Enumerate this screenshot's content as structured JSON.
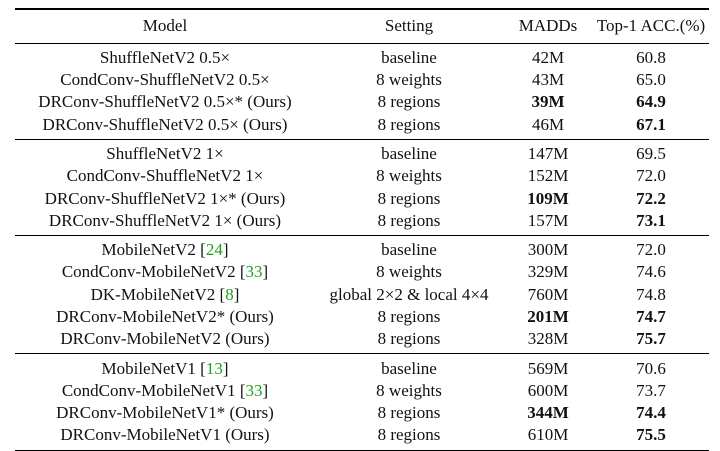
{
  "headers": [
    "Model",
    "Setting",
    "MADDs",
    "Top-1 ACC.(%)"
  ],
  "groups": [
    [
      {
        "model": "ShuffleNetV2 0.5×",
        "ref": "",
        "setting": "baseline",
        "madds": "42M",
        "acc": "60.8",
        "madds_bold": false,
        "acc_bold": false
      },
      {
        "model": "CondConv-ShuffleNetV2 0.5×",
        "ref": "",
        "setting": "8 weights",
        "madds": "43M",
        "acc": "65.0",
        "madds_bold": false,
        "acc_bold": false
      },
      {
        "model": "DRConv-ShuffleNetV2 0.5×* (Ours)",
        "ref": "",
        "setting": "8 regions",
        "madds": "39M",
        "acc": "64.9",
        "madds_bold": true,
        "acc_bold": true
      },
      {
        "model": "DRConv-ShuffleNetV2 0.5× (Ours)",
        "ref": "",
        "setting": "8 regions",
        "madds": "46M",
        "acc": "67.1",
        "madds_bold": false,
        "acc_bold": true
      }
    ],
    [
      {
        "model": "ShuffleNetV2 1×",
        "ref": "",
        "setting": "baseline",
        "madds": "147M",
        "acc": "69.5",
        "madds_bold": false,
        "acc_bold": false
      },
      {
        "model": "CondConv-ShuffleNetV2 1×",
        "ref": "",
        "setting": "8 weights",
        "madds": "152M",
        "acc": "72.0",
        "madds_bold": false,
        "acc_bold": false
      },
      {
        "model": "DRConv-ShuffleNetV2 1×* (Ours)",
        "ref": "",
        "setting": "8 regions",
        "madds": "109M",
        "acc": "72.2",
        "madds_bold": true,
        "acc_bold": true
      },
      {
        "model": "DRConv-ShuffleNetV2 1× (Ours)",
        "ref": "",
        "setting": "8 regions",
        "madds": "157M",
        "acc": "73.1",
        "madds_bold": false,
        "acc_bold": true
      }
    ],
    [
      {
        "model": "MobileNetV2",
        "ref": "24",
        "setting": "baseline",
        "madds": "300M",
        "acc": "72.0",
        "madds_bold": false,
        "acc_bold": false
      },
      {
        "model": "CondConv-MobileNetV2",
        "ref": "33",
        "setting": "8 weights",
        "madds": "329M",
        "acc": "74.6",
        "madds_bold": false,
        "acc_bold": false
      },
      {
        "model": "DK-MobileNetV2",
        "ref": "8",
        "setting": "global 2×2 & local 4×4",
        "madds": "760M",
        "acc": "74.8",
        "madds_bold": false,
        "acc_bold": false
      },
      {
        "model": "DRConv-MobileNetV2* (Ours)",
        "ref": "",
        "setting": "8 regions",
        "madds": "201M",
        "acc": "74.7",
        "madds_bold": true,
        "acc_bold": true
      },
      {
        "model": "DRConv-MobileNetV2 (Ours)",
        "ref": "",
        "setting": "8 regions",
        "madds": "328M",
        "acc": "75.7",
        "madds_bold": false,
        "acc_bold": true
      }
    ],
    [
      {
        "model": "MobileNetV1",
        "ref": "13",
        "setting": "baseline",
        "madds": "569M",
        "acc": "70.6",
        "madds_bold": false,
        "acc_bold": false
      },
      {
        "model": "CondConv-MobileNetV1",
        "ref": "33",
        "setting": "8 weights",
        "madds": "600M",
        "acc": "73.7",
        "madds_bold": false,
        "acc_bold": false
      },
      {
        "model": "DRConv-MobileNetV1* (Ours)",
        "ref": "",
        "setting": "8 regions",
        "madds": "344M",
        "acc": "74.4",
        "madds_bold": true,
        "acc_bold": true
      },
      {
        "model": "DRConv-MobileNetV1 (Ours)",
        "ref": "",
        "setting": "8 regions",
        "madds": "610M",
        "acc": "75.5",
        "madds_bold": false,
        "acc_bold": true
      }
    ]
  ],
  "colors": {
    "citation": "#1aa31a",
    "text": "#111111",
    "rule": "#000000"
  }
}
